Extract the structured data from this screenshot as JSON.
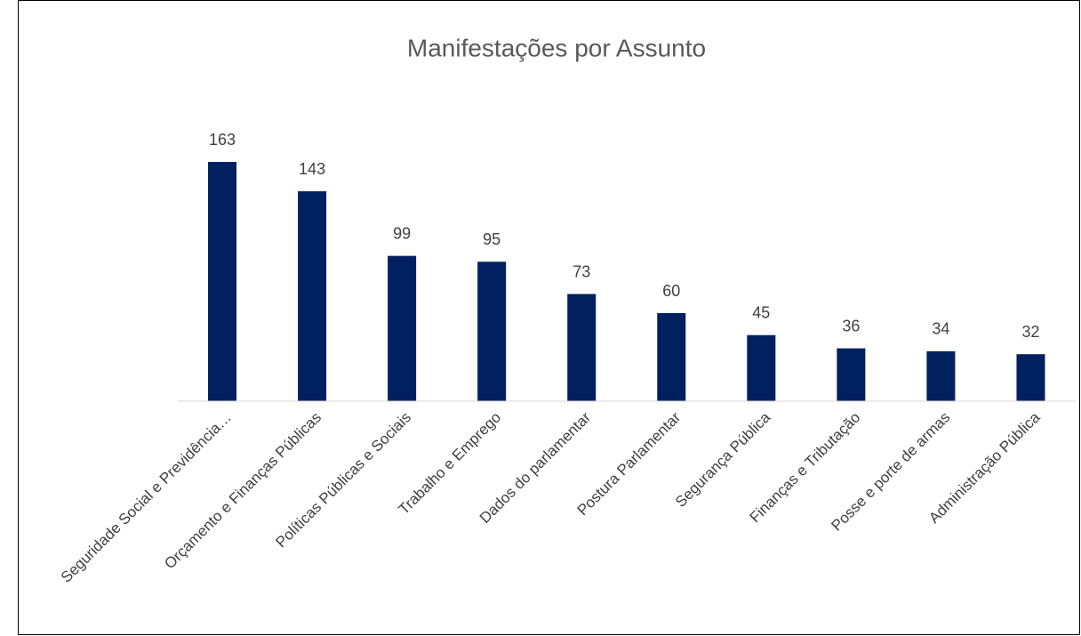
{
  "chart_data": {
    "type": "bar",
    "title": "Manifestações por Assunto",
    "categories": [
      "Seguridade Social e Previdência…",
      "Orçamento e Finanças Públicas",
      "Políticas Públicas e Sociais",
      "Trabalho e Emprego",
      "Dados do parlamentar",
      "Postura Parlamentar",
      "Segurança Pública",
      "Finanças e Tributação",
      "Posse e porte de armas",
      "Administração Pública"
    ],
    "values": [
      163,
      143,
      99,
      95,
      73,
      60,
      45,
      36,
      34,
      32
    ],
    "color": "#002060",
    "ylim": [
      0,
      180
    ]
  }
}
